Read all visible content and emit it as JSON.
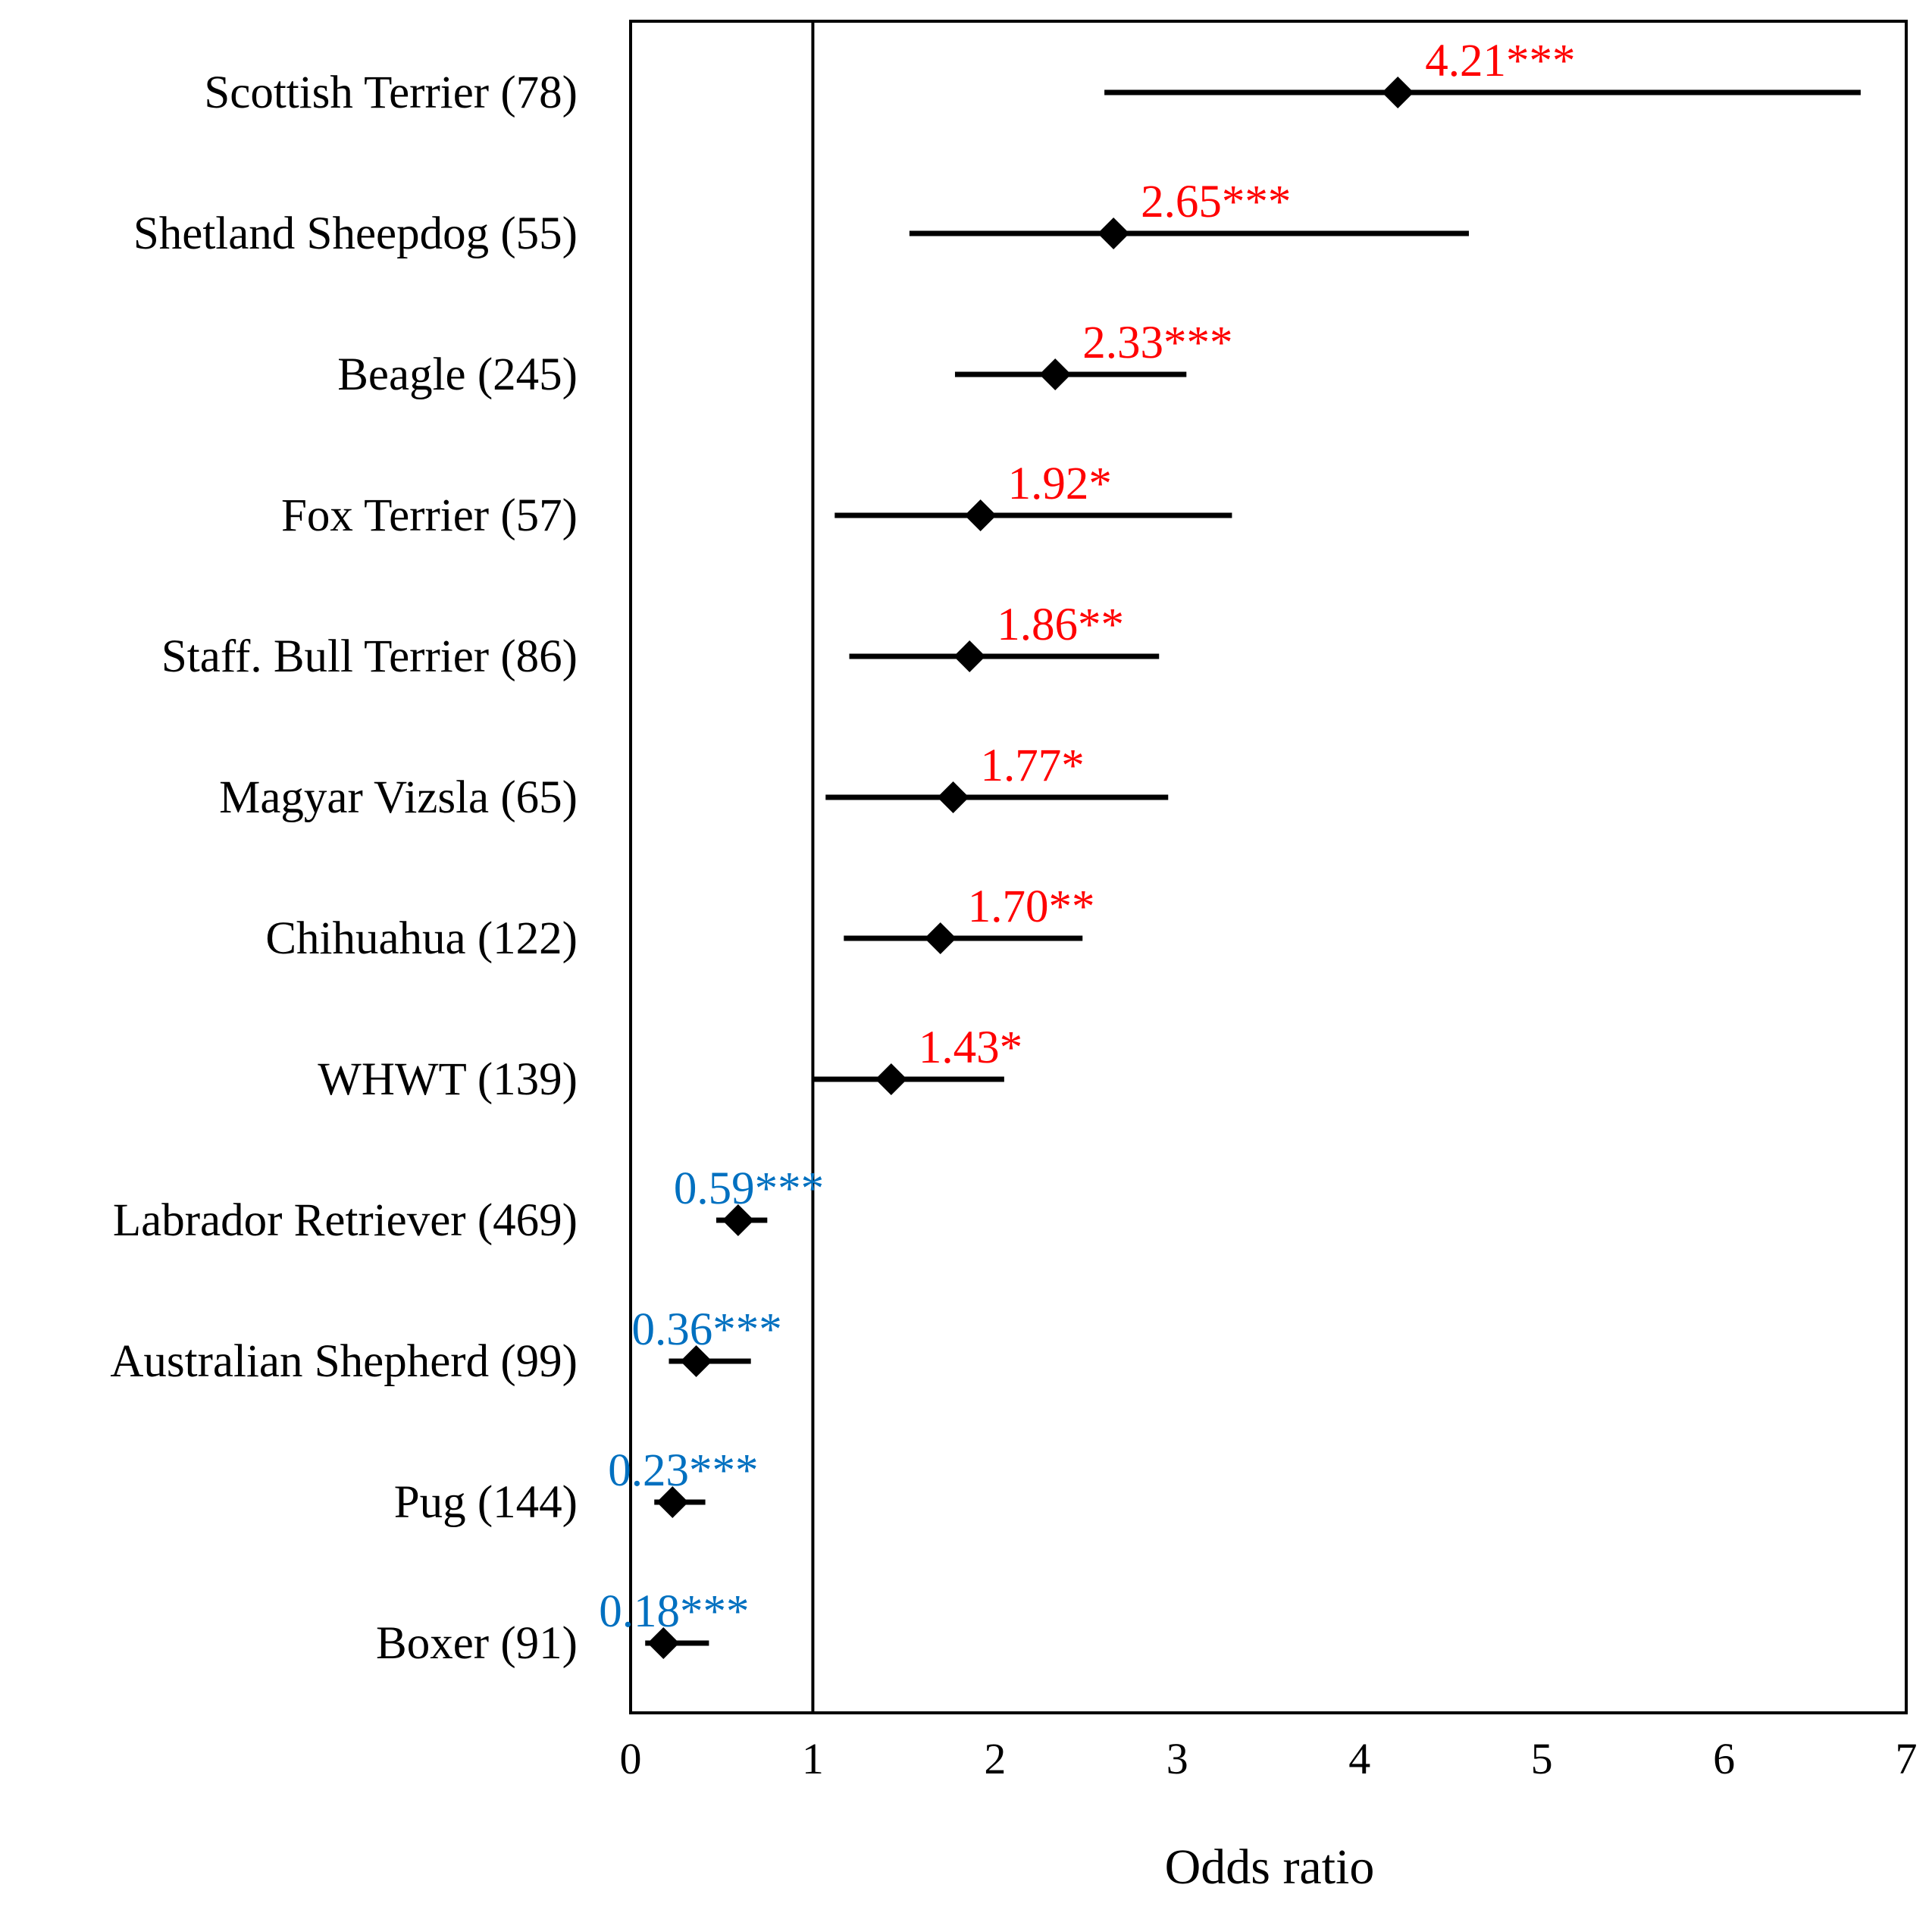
{
  "chart_data": {
    "type": "forest",
    "xlabel": "Odds ratio",
    "xlim": [
      0,
      7
    ],
    "xticks": [
      "0",
      "1",
      "2",
      "3",
      "4",
      "5",
      "6",
      "7"
    ],
    "reference_line": 1,
    "colors": {
      "increased": "#ff0000",
      "decreased": "#0070c0",
      "marker": "#000000"
    },
    "series": [
      {
        "category": "Scottish Terrier (78)",
        "or": 4.21,
        "ci": [
          2.6,
          6.75
        ],
        "label": "4.21***",
        "direction": "increased"
      },
      {
        "category": "Shetland Sheepdog (55)",
        "or": 2.65,
        "ci": [
          1.53,
          4.6
        ],
        "label": "2.65***",
        "direction": "increased"
      },
      {
        "category": "Beagle (245)",
        "or": 2.33,
        "ci": [
          1.78,
          3.05
        ],
        "label": "2.33***",
        "direction": "increased"
      },
      {
        "category": "Fox Terrier (57)",
        "or": 1.92,
        "ci": [
          1.12,
          3.3
        ],
        "label": "1.92*",
        "direction": "increased"
      },
      {
        "category": "Staff. Bull Terrier (86)",
        "or": 1.86,
        "ci": [
          1.2,
          2.9
        ],
        "label": "1.86**",
        "direction": "increased"
      },
      {
        "category": "Magyar Vizsla (65)",
        "or": 1.77,
        "ci": [
          1.07,
          2.95
        ],
        "label": "1.77*",
        "direction": "increased"
      },
      {
        "category": "Chihuahua (122)",
        "or": 1.7,
        "ci": [
          1.17,
          2.48
        ],
        "label": "1.70**",
        "direction": "increased"
      },
      {
        "category": "WHWT (139)",
        "or": 1.43,
        "ci": [
          1.0,
          2.05
        ],
        "label": "1.43*",
        "direction": "increased"
      },
      {
        "category": "Labrador Retriever (469)",
        "or": 0.59,
        "ci": [
          0.47,
          0.75
        ],
        "label": "0.59***",
        "direction": "decreased"
      },
      {
        "category": "Australian Shepherd (99)",
        "or": 0.36,
        "ci": [
          0.21,
          0.66
        ],
        "label": "0.36***",
        "direction": "decreased"
      },
      {
        "category": "Pug (144)",
        "or": 0.23,
        "ci": [
          0.13,
          0.41
        ],
        "label": "0.23***",
        "direction": "decreased"
      },
      {
        "category": "Boxer (91)",
        "or": 0.18,
        "ci": [
          0.08,
          0.43
        ],
        "label": "0.18***",
        "direction": "decreased"
      }
    ]
  }
}
